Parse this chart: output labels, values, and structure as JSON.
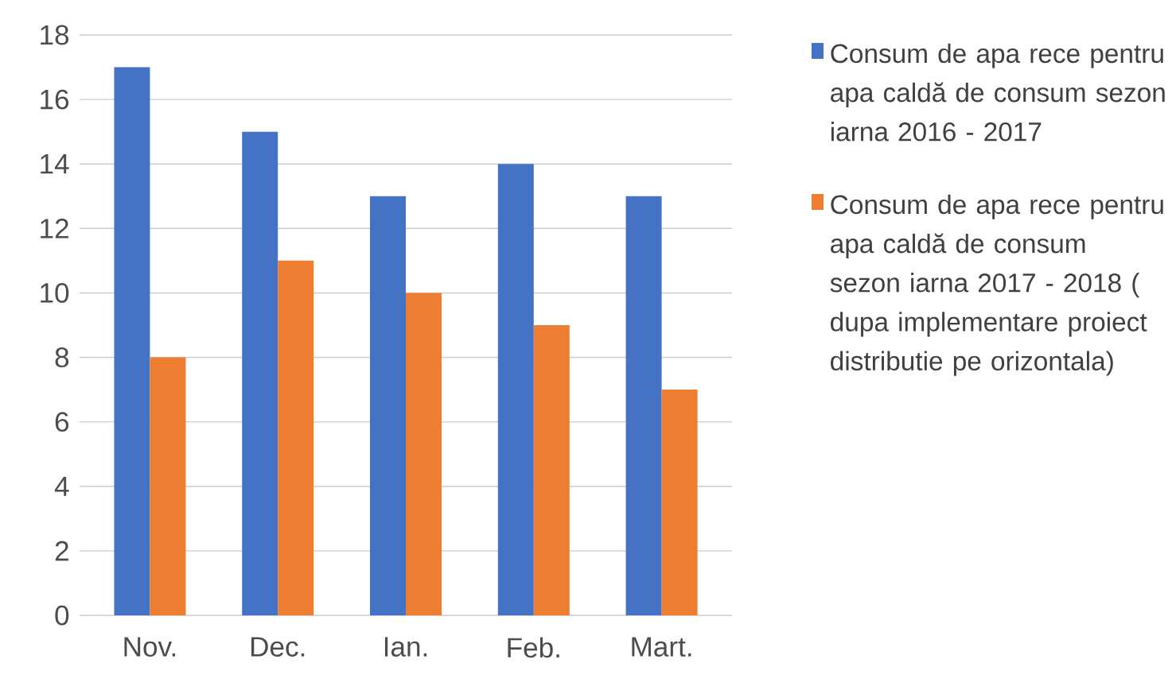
{
  "chart_data": {
    "type": "bar",
    "categories": [
      "Nov.",
      "Dec.",
      "Ian.",
      "Feb.",
      "Mart."
    ],
    "series": [
      {
        "name": "Consum de apa rece pentru apa caldă de consum sezon iarna 2016 - 2017",
        "color": "#4472c4",
        "values": [
          17,
          15,
          13,
          14,
          13
        ]
      },
      {
        "name": "Consum de apa rece pentru apa caldă de consum sezon iarna 2017 - 2018 ( dupa implementare proiect distributie pe orizontala)",
        "color": "#ed7d31",
        "values": [
          8,
          11,
          10,
          9,
          7
        ]
      }
    ],
    "ylim": [
      0,
      18
    ],
    "yticks": [
      0,
      2,
      4,
      6,
      8,
      10,
      12,
      14,
      16,
      18
    ],
    "grid": "y",
    "legend": "right"
  }
}
